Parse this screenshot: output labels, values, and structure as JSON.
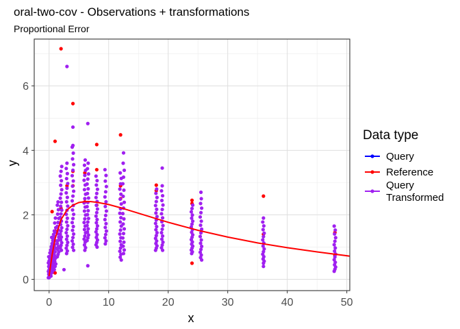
{
  "chart_data": {
    "type": "scatter",
    "title": "oral-two-cov - Observations + transformations",
    "subtitle": "Proportional Error",
    "xlabel": "x",
    "ylabel": "y",
    "xlim": [
      -2.5,
      50.5
    ],
    "ylim": [
      -0.35,
      7.45
    ],
    "x_ticks": [
      0,
      10,
      20,
      30,
      40,
      50
    ],
    "y_ticks": [
      0,
      2,
      4,
      6
    ],
    "grid": true,
    "legend_position": "right",
    "legend_title": "Data type",
    "legend": [
      {
        "label": "Query",
        "color": "#0000ff"
      },
      {
        "label": "Reference",
        "color": "#ff0000"
      },
      {
        "label": "Query Transformed",
        "label_lines": [
          "Query",
          "Transformed"
        ],
        "color": "#a020f0"
      }
    ],
    "series": [
      {
        "name": "Reference",
        "color": "#ff0000",
        "points": [
          [
            2.0,
            7.15
          ],
          [
            4.0,
            5.45
          ],
          [
            1.0,
            4.28
          ],
          [
            12.0,
            4.48
          ],
          [
            8.0,
            4.18
          ],
          [
            0.5,
            2.1
          ],
          [
            1.0,
            1.5
          ],
          [
            1.0,
            0.2
          ],
          [
            2.0,
            2.2
          ],
          [
            3.0,
            2.9
          ],
          [
            4.0,
            3.35
          ],
          [
            4.0,
            2.9
          ],
          [
            6.0,
            3.3
          ],
          [
            6.0,
            2.4
          ],
          [
            8.0,
            3.4
          ],
          [
            8.0,
            2.3
          ],
          [
            12.0,
            2.5
          ],
          [
            12.0,
            2.9
          ],
          [
            18.0,
            2.92
          ],
          [
            18.0,
            2.75
          ],
          [
            24.0,
            2.45
          ],
          [
            24.0,
            2.35
          ],
          [
            24.0,
            0.5
          ],
          [
            36.0,
            2.58
          ],
          [
            36.0,
            1.4
          ],
          [
            48.0,
            1.45
          ],
          [
            48.0,
            0.75
          ]
        ]
      },
      {
        "name": "Query Transformed",
        "color": "#a020f0",
        "points": [
          [
            3.0,
            6.6
          ],
          [
            4.0,
            4.72
          ],
          [
            6.5,
            4.83
          ],
          [
            4.0,
            4.15
          ],
          [
            12.5,
            3.92
          ],
          [
            19.0,
            3.45
          ],
          [
            25.5,
            2.7
          ],
          [
            6.5,
            0.42
          ],
          [
            2.5,
            0.3
          ],
          [
            36.0,
            0.4
          ],
          [
            0.0,
            0.05
          ],
          [
            0.25,
            0.4
          ],
          [
            0.5,
            0.9
          ],
          [
            0.75,
            1.3
          ],
          [
            1.5,
            2.4
          ]
        ],
        "columns": [
          {
            "x": 0.0,
            "min": 0.05,
            "max": 0.7,
            "n": 14
          },
          {
            "x": 0.25,
            "min": 0.1,
            "max": 1.0,
            "n": 14
          },
          {
            "x": 0.5,
            "min": 0.2,
            "max": 1.3,
            "n": 16
          },
          {
            "x": 0.75,
            "min": 0.3,
            "max": 1.5,
            "n": 16
          },
          {
            "x": 1.0,
            "min": 0.4,
            "max": 1.9,
            "n": 14
          },
          {
            "x": 1.5,
            "min": 0.7,
            "max": 2.3,
            "n": 16
          },
          {
            "x": 2.0,
            "min": 0.9,
            "max": 3.5,
            "n": 24
          },
          {
            "x": 3.0,
            "min": 0.8,
            "max": 3.6,
            "n": 24
          },
          {
            "x": 4.0,
            "min": 0.9,
            "max": 4.1,
            "n": 24
          },
          {
            "x": 6.0,
            "min": 0.9,
            "max": 3.7,
            "n": 24
          },
          {
            "x": 6.5,
            "min": 1.2,
            "max": 3.6,
            "n": 20
          },
          {
            "x": 8.0,
            "min": 1.0,
            "max": 3.2,
            "n": 22
          },
          {
            "x": 9.5,
            "min": 1.1,
            "max": 3.4,
            "n": 18
          },
          {
            "x": 12.0,
            "min": 0.6,
            "max": 3.3,
            "n": 22
          },
          {
            "x": 12.5,
            "min": 0.8,
            "max": 3.6,
            "n": 18
          },
          {
            "x": 18.0,
            "min": 0.9,
            "max": 2.8,
            "n": 20
          },
          {
            "x": 19.0,
            "min": 0.9,
            "max": 2.9,
            "n": 18
          },
          {
            "x": 24.0,
            "min": 0.8,
            "max": 2.3,
            "n": 20
          },
          {
            "x": 25.5,
            "min": 0.6,
            "max": 2.5,
            "n": 18
          },
          {
            "x": 36.0,
            "min": 0.5,
            "max": 1.9,
            "n": 16
          },
          {
            "x": 48.0,
            "min": 0.25,
            "max": 1.65,
            "n": 16
          }
        ]
      }
    ],
    "fit_line": {
      "name": "Reference",
      "color": "#ff0000",
      "points": [
        [
          0,
          0.1
        ],
        [
          0.5,
          0.75
        ],
        [
          1,
          1.25
        ],
        [
          2,
          1.85
        ],
        [
          3,
          2.15
        ],
        [
          4,
          2.3
        ],
        [
          5,
          2.38
        ],
        [
          6,
          2.41
        ],
        [
          7,
          2.41
        ],
        [
          8,
          2.39
        ],
        [
          10,
          2.32
        ],
        [
          12,
          2.22
        ],
        [
          15,
          2.05
        ],
        [
          18,
          1.88
        ],
        [
          20,
          1.77
        ],
        [
          24,
          1.57
        ],
        [
          25,
          1.52
        ],
        [
          30,
          1.31
        ],
        [
          35,
          1.13
        ],
        [
          40,
          0.98
        ],
        [
          45,
          0.85
        ],
        [
          50.5,
          0.72
        ]
      ]
    }
  }
}
